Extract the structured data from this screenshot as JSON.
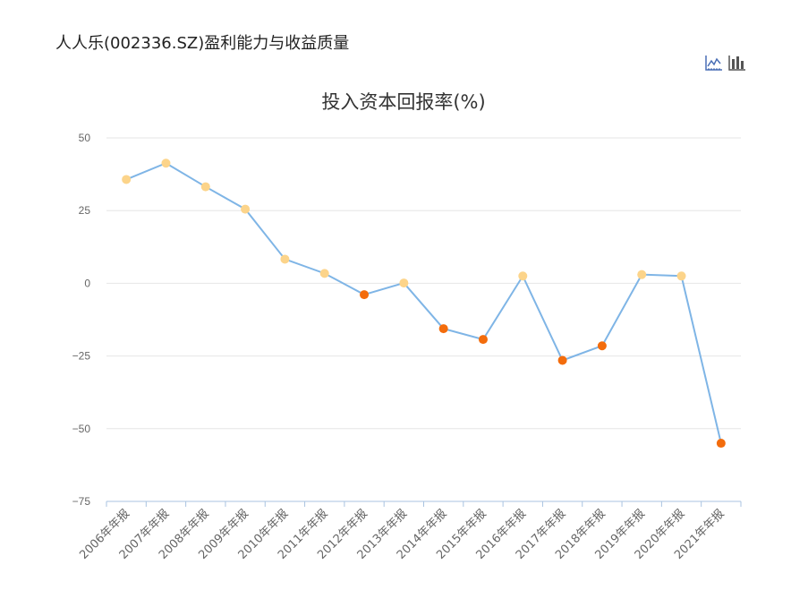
{
  "header": {
    "title": "人人乐(002336.SZ)盈利能力与收益质量"
  },
  "toolbar": {
    "line_icon": "line-chart-icon",
    "bar_icon": "bar-chart-icon"
  },
  "colors": {
    "line": "#7fb5e6",
    "positive_point": "#fcd48a",
    "negative_point": "#f36c0c",
    "grid": "#e6e6e6",
    "axis": "#a9c3e0"
  },
  "chart_data": {
    "type": "line",
    "title": "投入资本回报率(%)",
    "categories": [
      "2006年年报",
      "2007年年报",
      "2008年年报",
      "2009年年报",
      "2010年年报",
      "2011年年报",
      "2012年年报",
      "2013年年报",
      "2014年年报",
      "2015年年报",
      "2016年年报",
      "2017年年报",
      "2018年年报",
      "2019年年报",
      "2020年年报",
      "2021年年报"
    ],
    "values": [
      35.7,
      41.3,
      33.2,
      25.5,
      8.3,
      3.4,
      -3.9,
      0.1,
      -15.6,
      -19.3,
      2.5,
      -26.5,
      -21.5,
      3.0,
      2.5,
      -55.0
    ],
    "yticks": [
      "50",
      "25",
      "0",
      "−25",
      "−50",
      "−75"
    ],
    "ylim": [
      -75,
      50
    ],
    "grid": true,
    "legend": "none"
  }
}
